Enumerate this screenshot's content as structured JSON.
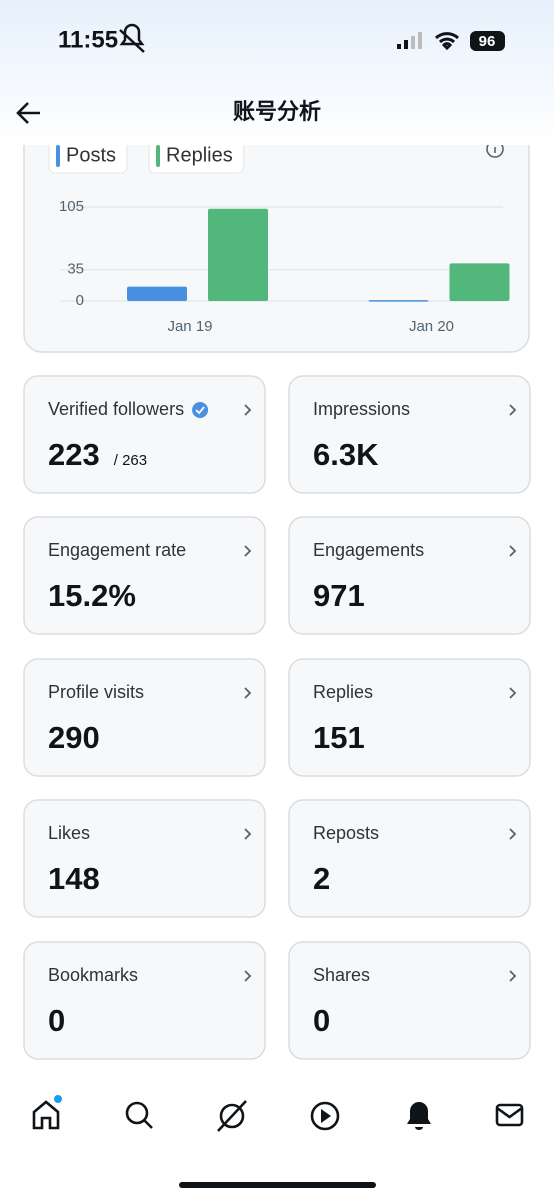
{
  "status_bar": {
    "time": "11:55",
    "battery": "96"
  },
  "header": {
    "title": "账号分析"
  },
  "chart_data": {
    "type": "bar",
    "categories": [
      "Jan 19",
      "Jan 20"
    ],
    "series": [
      {
        "name": "Posts",
        "color": "#4a90e2",
        "values": [
          16,
          1
        ]
      },
      {
        "name": "Replies",
        "color": "#52b77a",
        "values": [
          103,
          42
        ]
      }
    ],
    "ylim": [
      0,
      105
    ],
    "yticks": [
      0,
      35,
      105
    ],
    "grid": true
  },
  "cards": [
    {
      "label": "Verified followers",
      "value": "223",
      "sub": "/ 263"
    },
    {
      "label": "Impressions",
      "value": "6.3K"
    },
    {
      "label": "Engagement rate",
      "value": "15.2%"
    },
    {
      "label": "Engagements",
      "value": "971"
    },
    {
      "label": "Profile visits",
      "value": "290"
    },
    {
      "label": "Replies",
      "value": "151"
    },
    {
      "label": "Likes",
      "value": "148"
    },
    {
      "label": "Reposts",
      "value": "2"
    },
    {
      "label": "Bookmarks",
      "value": "0"
    },
    {
      "label": "Shares",
      "value": "0"
    }
  ]
}
